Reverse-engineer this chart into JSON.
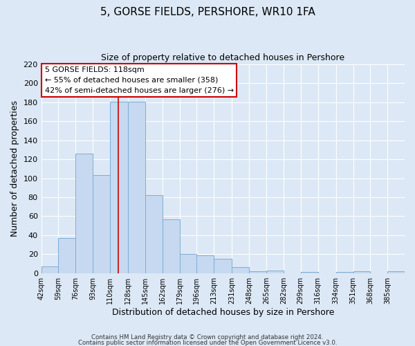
{
  "title": "5, GORSE FIELDS, PERSHORE, WR10 1FA",
  "subtitle": "Size of property relative to detached houses in Pershore",
  "xlabel": "Distribution of detached houses by size in Pershore",
  "ylabel": "Number of detached properties",
  "bar_edges": [
    42,
    59,
    76,
    93,
    110,
    128,
    145,
    162,
    179,
    196,
    213,
    231,
    248,
    265,
    282,
    299,
    316,
    334,
    351,
    368,
    385
  ],
  "bar_heights": [
    7,
    37,
    126,
    103,
    181,
    181,
    82,
    57,
    20,
    19,
    15,
    6,
    2,
    3,
    0,
    1,
    0,
    1,
    2,
    0,
    2
  ],
  "bar_color": "#c6d9f0",
  "bar_edgecolor": "#7eadd4",
  "tick_labels": [
    "42sqm",
    "59sqm",
    "76sqm",
    "93sqm",
    "110sqm",
    "128sqm",
    "145sqm",
    "162sqm",
    "179sqm",
    "196sqm",
    "213sqm",
    "231sqm",
    "248sqm",
    "265sqm",
    "282sqm",
    "299sqm",
    "316sqm",
    "334sqm",
    "351sqm",
    "368sqm",
    "385sqm"
  ],
  "vline_x": 118,
  "vline_color": "#cc0000",
  "ylim": [
    0,
    220
  ],
  "yticks": [
    0,
    20,
    40,
    60,
    80,
    100,
    120,
    140,
    160,
    180,
    200,
    220
  ],
  "annotation_title": "5 GORSE FIELDS: 118sqm",
  "annotation_line1": "← 55% of detached houses are smaller (358)",
  "annotation_line2": "42% of semi-detached houses are larger (276) →",
  "annotation_box_color": "#ffffff",
  "annotation_box_edgecolor": "#cc0000",
  "footer1": "Contains HM Land Registry data © Crown copyright and database right 2024.",
  "footer2": "Contains public sector information licensed under the Open Government Licence v3.0.",
  "background_color": "#dce8f5",
  "plot_bg_color": "#dce8f5",
  "grid_color": "#ffffff"
}
